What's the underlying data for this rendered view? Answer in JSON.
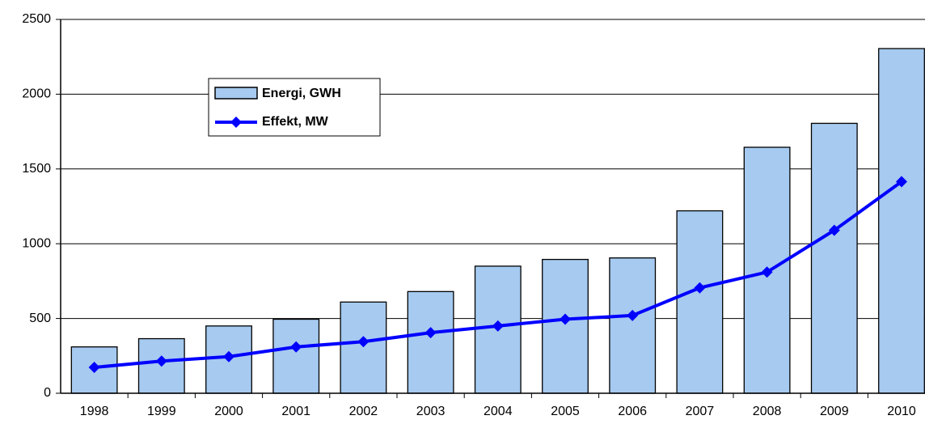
{
  "chart_data": {
    "type": "bar-line",
    "categories": [
      "1998",
      "1999",
      "2000",
      "2001",
      "2002",
      "2003",
      "2004",
      "2005",
      "2006",
      "2007",
      "2008",
      "2009",
      "2010"
    ],
    "series": [
      {
        "name": "Energi, GWH",
        "type": "bar",
        "color": "#a6caf0",
        "values": [
          310,
          365,
          450,
          495,
          610,
          680,
          850,
          895,
          905,
          1220,
          1645,
          1805,
          2305
        ]
      },
      {
        "name": "Effekt, MW",
        "type": "line",
        "color": "#0000ff",
        "values": [
          173,
          215,
          245,
          310,
          345,
          405,
          450,
          495,
          520,
          705,
          810,
          1090,
          1415
        ]
      }
    ],
    "ylim": [
      0,
      2500
    ],
    "yticks": [
      0,
      500,
      1000,
      1500,
      2000,
      2500
    ],
    "grid": true,
    "legend": "upper left"
  }
}
